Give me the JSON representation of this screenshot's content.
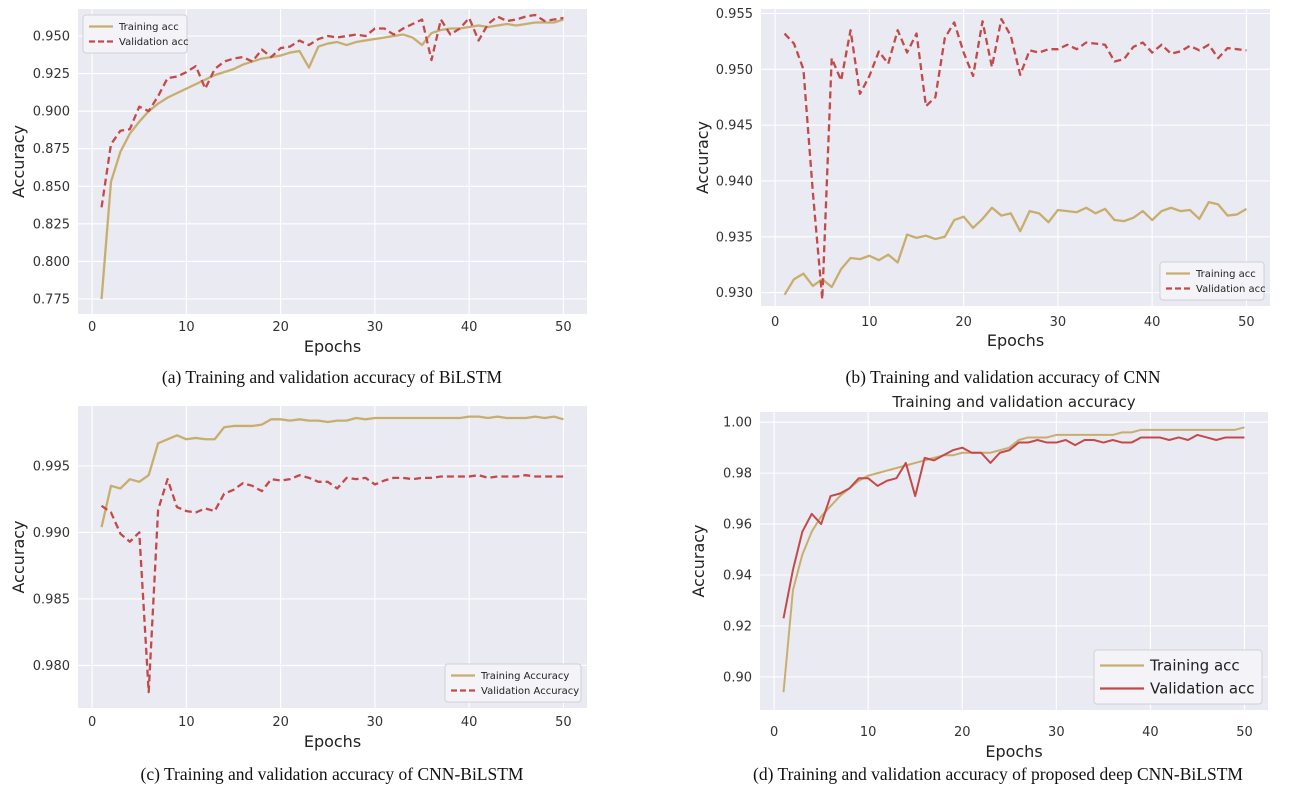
{
  "colors": {
    "training": "#c8ae6e",
    "validation": "#c44a4a",
    "plot_bg": "#eaeaf2",
    "grid": "#ffffff"
  },
  "chart_data": [
    {
      "type": "line",
      "caption": "(a) Training and validation accuracy of BiLSTM",
      "title": "",
      "xlabel": "Epochs",
      "ylabel": "Accuracy",
      "xlim": [
        -1.5,
        52.5
      ],
      "ylim": [
        0.765,
        0.968
      ],
      "xticks": [
        0,
        10,
        20,
        30,
        40,
        50
      ],
      "yticks": [
        0.775,
        0.8,
        0.825,
        0.85,
        0.875,
        0.9,
        0.925,
        0.95
      ],
      "tick_decimals": 3,
      "legend": "top-left",
      "legend_size": "small",
      "grid": true,
      "series": [
        {
          "name": "Training acc",
          "style": "solid",
          "values": [
            0.775,
            0.853,
            0.873,
            0.885,
            0.893,
            0.9,
            0.905,
            0.909,
            0.912,
            0.915,
            0.918,
            0.921,
            0.924,
            0.926,
            0.928,
            0.931,
            0.933,
            0.935,
            0.936,
            0.937,
            0.939,
            0.94,
            0.929,
            0.943,
            0.945,
            0.946,
            0.944,
            0.946,
            0.947,
            0.948,
            0.949,
            0.95,
            0.951,
            0.949,
            0.944,
            0.952,
            0.954,
            0.955,
            0.955,
            0.956,
            0.957,
            0.956,
            0.957,
            0.958,
            0.957,
            0.958,
            0.959,
            0.959,
            0.959,
            0.961
          ]
        },
        {
          "name": "Validation acc",
          "style": "dashed",
          "values": [
            0.836,
            0.878,
            0.887,
            0.888,
            0.903,
            0.9,
            0.91,
            0.922,
            0.923,
            0.926,
            0.93,
            0.915,
            0.928,
            0.933,
            0.935,
            0.936,
            0.933,
            0.941,
            0.936,
            0.942,
            0.943,
            0.947,
            0.944,
            0.948,
            0.95,
            0.949,
            0.95,
            0.951,
            0.95,
            0.955,
            0.955,
            0.951,
            0.955,
            0.958,
            0.961,
            0.934,
            0.961,
            0.951,
            0.955,
            0.962,
            0.947,
            0.958,
            0.963,
            0.96,
            0.961,
            0.963,
            0.964,
            0.96,
            0.961,
            0.962
          ]
        }
      ]
    },
    {
      "type": "line",
      "caption": "(b) Training and validation accuracy of CNN",
      "title": "",
      "xlabel": "Epochs",
      "ylabel": "Accuracy",
      "xlim": [
        -1.5,
        52.5
      ],
      "ylim": [
        0.9288,
        0.9554
      ],
      "xticks": [
        0,
        10,
        20,
        30,
        40,
        50
      ],
      "yticks": [
        0.93,
        0.935,
        0.94,
        0.945,
        0.95,
        0.955
      ],
      "tick_decimals": 3,
      "legend": "bottom-right",
      "legend_size": "small",
      "grid": true,
      "series": [
        {
          "name": "Training acc",
          "style": "solid",
          "values": [
            0.9298,
            0.9312,
            0.9317,
            0.9306,
            0.9312,
            0.9305,
            0.9321,
            0.9331,
            0.933,
            0.9333,
            0.9329,
            0.9334,
            0.9327,
            0.9352,
            0.9349,
            0.9351,
            0.9348,
            0.935,
            0.9365,
            0.9368,
            0.9358,
            0.9366,
            0.9376,
            0.9369,
            0.9371,
            0.9355,
            0.9373,
            0.9371,
            0.9363,
            0.9374,
            0.9373,
            0.9372,
            0.9376,
            0.9371,
            0.9375,
            0.9365,
            0.9364,
            0.9367,
            0.9373,
            0.9365,
            0.9373,
            0.9376,
            0.9373,
            0.9374,
            0.9366,
            0.9381,
            0.9379,
            0.9369,
            0.937,
            0.9375
          ]
        },
        {
          "name": "Validation acc",
          "style": "dashed",
          "values": [
            0.9532,
            0.9523,
            0.95,
            0.939,
            0.9294,
            0.951,
            0.949,
            0.9535,
            0.9478,
            0.9494,
            0.9516,
            0.9505,
            0.9535,
            0.9515,
            0.9532,
            0.9467,
            0.9475,
            0.9528,
            0.9542,
            0.9515,
            0.9494,
            0.9543,
            0.9502,
            0.9545,
            0.953,
            0.9495,
            0.9517,
            0.9515,
            0.9518,
            0.9518,
            0.9522,
            0.9518,
            0.9524,
            0.9523,
            0.9522,
            0.9507,
            0.9509,
            0.952,
            0.9524,
            0.9515,
            0.9522,
            0.9514,
            0.9516,
            0.9521,
            0.9517,
            0.9522,
            0.951,
            0.9519,
            0.9518,
            0.9517
          ]
        }
      ]
    },
    {
      "type": "line",
      "caption": "(c) Training and validation accuracy of CNN-BiLSTM",
      "title": "",
      "xlabel": "Epochs",
      "ylabel": "Accuracy",
      "xlim": [
        -1.5,
        52.5
      ],
      "ylim": [
        0.9768,
        0.9995
      ],
      "xticks": [
        0,
        10,
        20,
        30,
        40,
        50
      ],
      "yticks": [
        0.98,
        0.985,
        0.99,
        0.995
      ],
      "tick_decimals": 3,
      "legend": "bottom-right",
      "legend_size": "small",
      "grid": true,
      "series": [
        {
          "name": "Training Accuracy",
          "style": "solid",
          "values": [
            0.9904,
            0.9935,
            0.9933,
            0.994,
            0.9938,
            0.9943,
            0.9967,
            0.997,
            0.9973,
            0.997,
            0.9971,
            0.997,
            0.997,
            0.9979,
            0.998,
            0.998,
            0.998,
            0.9981,
            0.9985,
            0.9985,
            0.9984,
            0.9985,
            0.9984,
            0.9984,
            0.9983,
            0.9984,
            0.9984,
            0.9986,
            0.9985,
            0.9986,
            0.9986,
            0.9986,
            0.9986,
            0.9986,
            0.9986,
            0.9986,
            0.9986,
            0.9986,
            0.9986,
            0.9987,
            0.9987,
            0.9986,
            0.9987,
            0.9986,
            0.9986,
            0.9986,
            0.9987,
            0.9986,
            0.9987,
            0.9985
          ]
        },
        {
          "name": "Validation Accuracy",
          "style": "dashed",
          "values": [
            0.992,
            0.9915,
            0.9899,
            0.9893,
            0.99,
            0.978,
            0.9917,
            0.994,
            0.9919,
            0.9916,
            0.9915,
            0.9918,
            0.9916,
            0.9929,
            0.9932,
            0.9937,
            0.9935,
            0.9931,
            0.994,
            0.9939,
            0.994,
            0.9943,
            0.9941,
            0.9938,
            0.9938,
            0.9933,
            0.9941,
            0.994,
            0.9941,
            0.9936,
            0.9939,
            0.9941,
            0.9941,
            0.994,
            0.9941,
            0.9941,
            0.9942,
            0.9942,
            0.9942,
            0.9942,
            0.9943,
            0.9941,
            0.9942,
            0.9942,
            0.9942,
            0.9943,
            0.9942,
            0.9942,
            0.9942,
            0.9942
          ]
        }
      ]
    },
    {
      "type": "line",
      "caption": "(d) Training and validation accuracy of proposed deep CNN-BiLSTM",
      "title": "Training and validation accuracy",
      "xlabel": "Epochs",
      "ylabel": "Accuracy",
      "xlim": [
        -1.5,
        52.5
      ],
      "ylim": [
        0.887,
        1.004
      ],
      "xticks": [
        0,
        10,
        20,
        30,
        40,
        50
      ],
      "yticks": [
        0.9,
        0.92,
        0.94,
        0.96,
        0.98,
        1.0
      ],
      "tick_decimals": 2,
      "legend": "bottom-right",
      "legend_size": "large",
      "grid": true,
      "series": [
        {
          "name": "Training acc",
          "style": "solid",
          "values": [
            0.894,
            0.934,
            0.948,
            0.957,
            0.963,
            0.967,
            0.971,
            0.974,
            0.977,
            0.979,
            0.98,
            0.981,
            0.982,
            0.983,
            0.984,
            0.985,
            0.986,
            0.987,
            0.987,
            0.988,
            0.988,
            0.988,
            0.988,
            0.989,
            0.99,
            0.993,
            0.994,
            0.994,
            0.994,
            0.995,
            0.995,
            0.995,
            0.995,
            0.995,
            0.995,
            0.995,
            0.996,
            0.996,
            0.997,
            0.997,
            0.997,
            0.997,
            0.997,
            0.997,
            0.997,
            0.997,
            0.997,
            0.997,
            0.997,
            0.998
          ]
        },
        {
          "name": "Validation acc",
          "style": "solid",
          "values": [
            0.923,
            0.942,
            0.957,
            0.964,
            0.96,
            0.971,
            0.972,
            0.974,
            0.978,
            0.978,
            0.975,
            0.977,
            0.978,
            0.984,
            0.971,
            0.986,
            0.985,
            0.987,
            0.989,
            0.99,
            0.988,
            0.988,
            0.984,
            0.988,
            0.989,
            0.992,
            0.992,
            0.993,
            0.992,
            0.992,
            0.993,
            0.991,
            0.993,
            0.993,
            0.992,
            0.993,
            0.992,
            0.992,
            0.994,
            0.994,
            0.994,
            0.993,
            0.994,
            0.993,
            0.995,
            0.994,
            0.993,
            0.994,
            0.994,
            0.994
          ]
        }
      ]
    }
  ]
}
